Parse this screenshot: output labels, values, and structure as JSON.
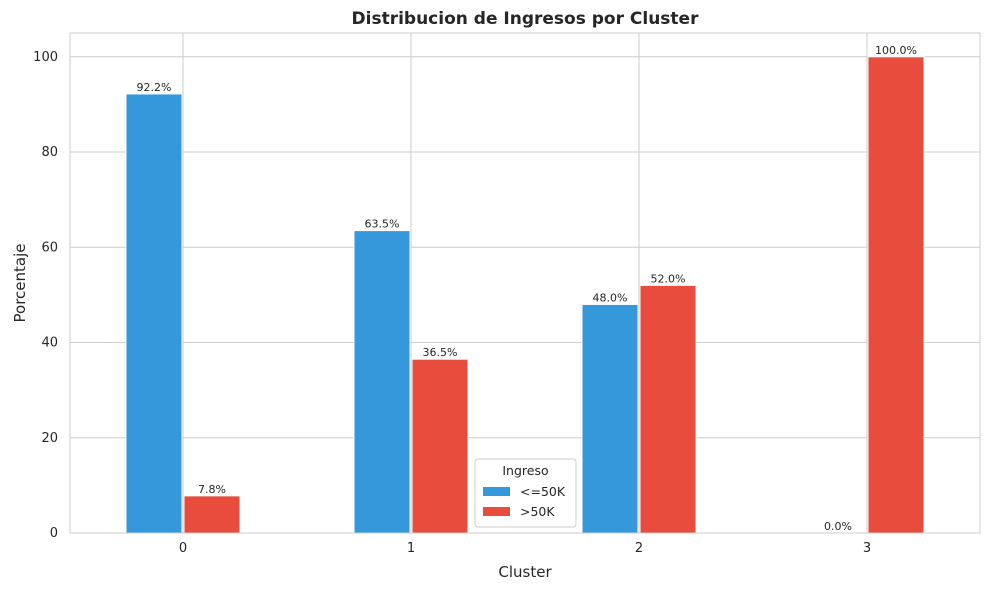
{
  "chart_data": {
    "type": "bar",
    "title": "Distribucion de Ingresos por Cluster",
    "xlabel": "Cluster",
    "ylabel": "Porcentaje",
    "categories": [
      "0",
      "1",
      "2",
      "3"
    ],
    "series": [
      {
        "name": "<=50K",
        "values": [
          92.2,
          63.5,
          48.0,
          0.0
        ],
        "labels": [
          "92.2%",
          "63.5%",
          "48.0%",
          "0.0%"
        ],
        "color": "#3498db"
      },
      {
        "name": ">50K",
        "values": [
          7.8,
          36.5,
          52.0,
          100.0
        ],
        "labels": [
          "7.8%",
          "36.5%",
          "52.0%",
          "100.0%"
        ],
        "color": "#e74c3c"
      }
    ],
    "ylim": [
      0,
      105
    ],
    "yticks": [
      0,
      20,
      40,
      60,
      80,
      100
    ],
    "grid": true,
    "legend": {
      "title": "Ingreso",
      "placement": "lower-center"
    }
  }
}
